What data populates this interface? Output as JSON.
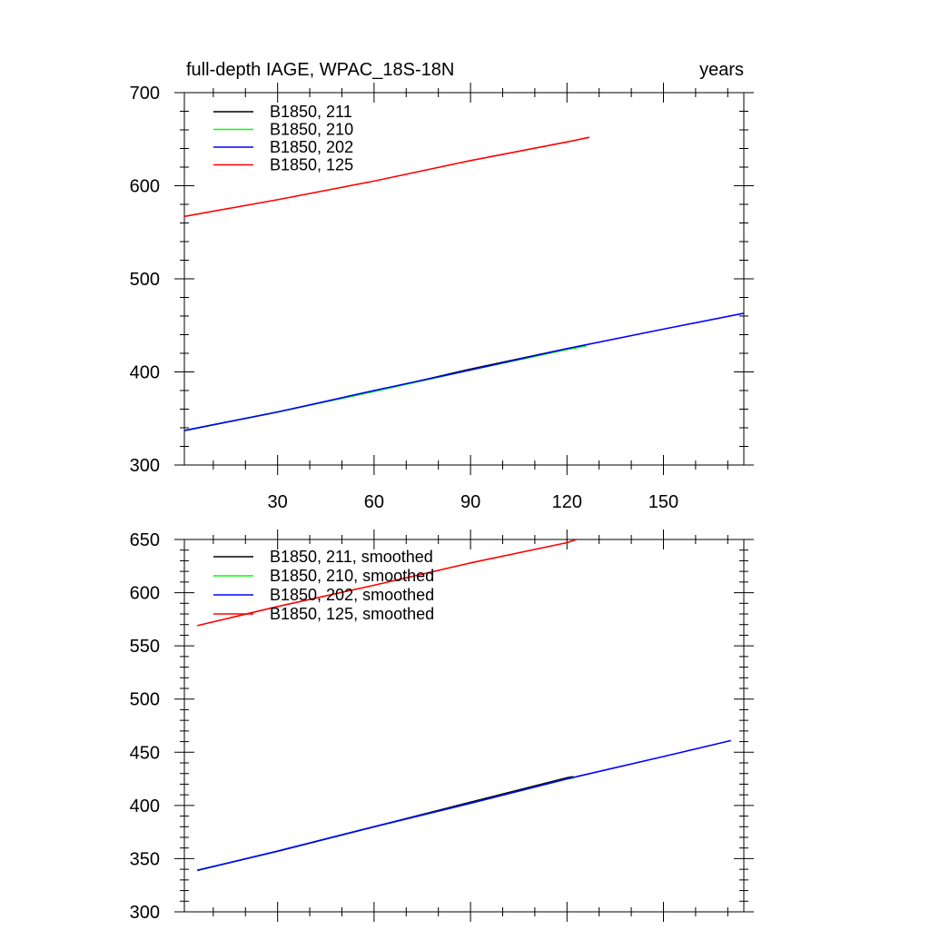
{
  "chart_data": [
    {
      "type": "line",
      "title": "full-depth IAGE, WPAC_18S-18N",
      "units_label": "years",
      "xlim": [
        1,
        175
      ],
      "ylim": [
        300,
        700
      ],
      "xticks": [
        30,
        60,
        90,
        120,
        150
      ],
      "yticks": [
        300,
        400,
        500,
        600,
        700
      ],
      "show_xtick_labels": true,
      "legend_position": "top-left",
      "series": [
        {
          "name": "B1850, 211",
          "color": "#000000",
          "x": [
            1,
            30,
            60,
            90,
            120,
            126
          ],
          "y": [
            337,
            357,
            379,
            403,
            425,
            429
          ]
        },
        {
          "name": "B1850, 210",
          "color": "#00ff00",
          "x": [
            1,
            30,
            60,
            90,
            120,
            126
          ],
          "y": [
            337,
            357,
            379,
            402,
            424,
            428
          ]
        },
        {
          "name": "B1850, 202",
          "color": "#0000ff",
          "x": [
            1,
            30,
            60,
            90,
            120,
            150,
            175
          ],
          "y": [
            337,
            357,
            380,
            402,
            425,
            446,
            463
          ]
        },
        {
          "name": "B1850, 125",
          "color": "#ff0000",
          "x": [
            1,
            30,
            60,
            90,
            120,
            127
          ],
          "y": [
            567,
            585,
            605,
            627,
            647,
            652
          ]
        }
      ]
    },
    {
      "type": "line",
      "title": "",
      "units_label": "",
      "xlim": [
        1,
        175
      ],
      "ylim": [
        300,
        650
      ],
      "xticks": [
        30,
        60,
        90,
        120,
        150
      ],
      "yticks": [
        300,
        350,
        400,
        450,
        500,
        550,
        600,
        650
      ],
      "show_xtick_labels": false,
      "legend_position": "top-left",
      "series": [
        {
          "name": "B1850, 211, smoothed",
          "color": "#000000",
          "x": [
            5,
            30,
            60,
            90,
            120,
            122
          ],
          "y": [
            339,
            357,
            380,
            403,
            426,
            427
          ]
        },
        {
          "name": "B1850, 210, smoothed",
          "color": "#00ff00",
          "x": [
            5,
            30,
            60,
            90,
            120,
            122
          ],
          "y": [
            339,
            357,
            380,
            402,
            425,
            426
          ]
        },
        {
          "name": "B1850, 202, smoothed",
          "color": "#0000ff",
          "x": [
            5,
            30,
            60,
            90,
            120,
            150,
            171
          ],
          "y": [
            339,
            357,
            380,
            402,
            425,
            446,
            461
          ]
        },
        {
          "name": "B1850, 125, smoothed",
          "color": "#ff0000",
          "x": [
            5,
            30,
            60,
            90,
            120,
            123
          ],
          "y": [
            569,
            587,
            607,
            628,
            647,
            650
          ]
        }
      ]
    }
  ]
}
